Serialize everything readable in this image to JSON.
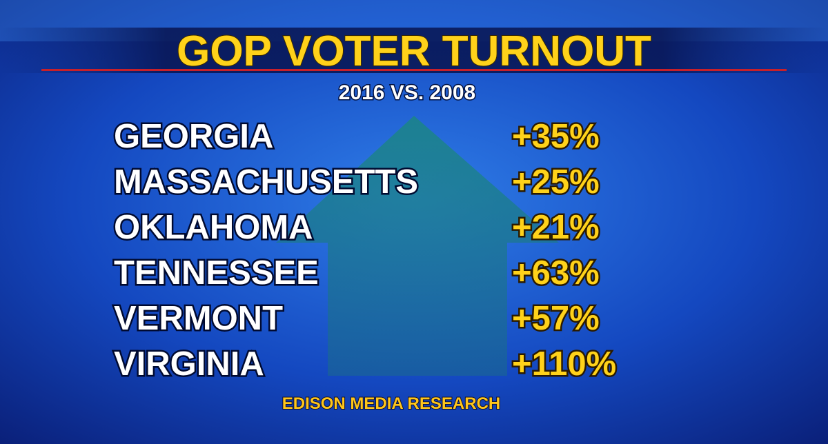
{
  "header": {
    "title": "GOP VOTER TURNOUT",
    "subtitle": "2016 VS. 2008"
  },
  "table": {
    "rows": [
      [
        "GEORGIA",
        "+35%"
      ],
      [
        "MASSACHUSETTS",
        "+25%"
      ],
      [
        "OKLAHOMA",
        "+21%"
      ],
      [
        "TENNESSEE",
        "+63%"
      ],
      [
        "VERMONT",
        "+57%"
      ],
      [
        "VIRGINIA",
        "+110%"
      ]
    ]
  },
  "source": "EDISON MEDIA RESEARCH"
}
